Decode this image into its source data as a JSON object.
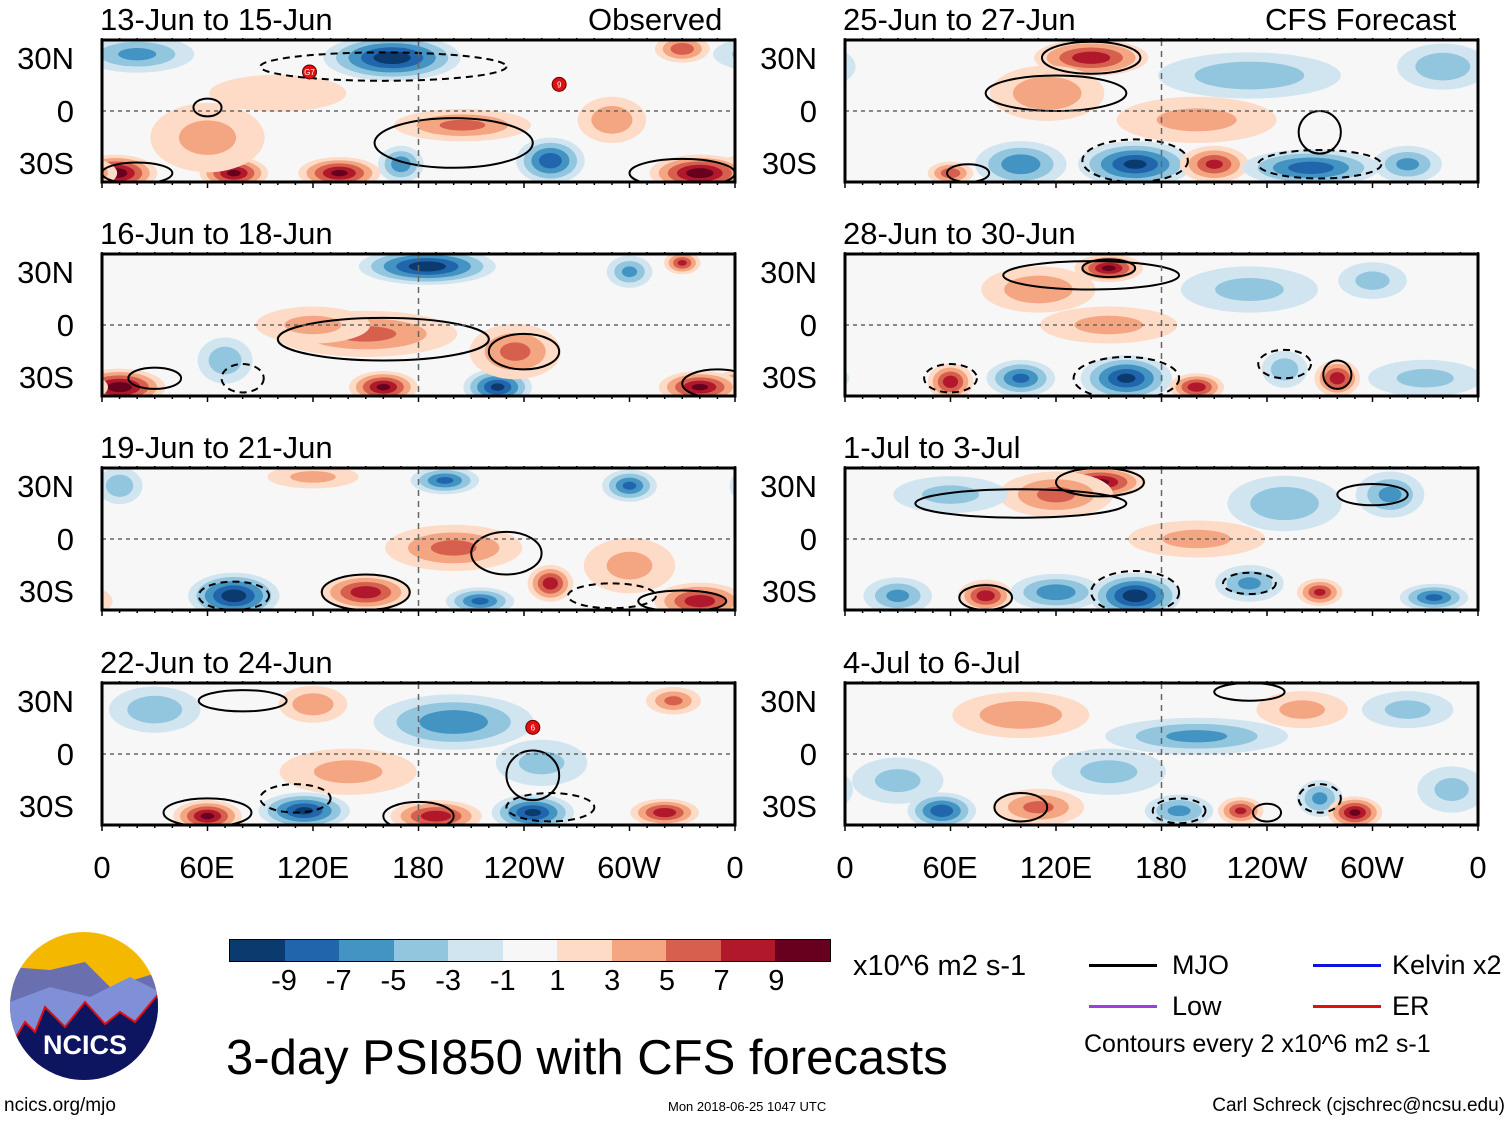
{
  "colors": [
    "#0a3a6e",
    "#2166ac",
    "#4393c3",
    "#92c5de",
    "#d1e5f0",
    "#f7f7f7",
    "#fddbc7",
    "#f4a582",
    "#d6604d",
    "#b2182b",
    "#67001f"
  ],
  "colorbar_labels": [
    "-9",
    "-7",
    "-5",
    "-3",
    "-1",
    "1",
    "3",
    "5",
    "7",
    "9"
  ],
  "units": "x10^6 m2 s-1",
  "lat_labels": [
    "30N",
    "0",
    "30S"
  ],
  "lon_labels": [
    "0",
    "60E",
    "120E",
    "180",
    "120W",
    "60W",
    "0"
  ],
  "headers": {
    "left": "Observed",
    "right": "CFS Forecast"
  },
  "title": "3-day PSI850 with CFS forecasts",
  "legend": [
    {
      "label": "MJO",
      "color": "#000000"
    },
    {
      "label": "Kelvin x2",
      "color": "#1010e0"
    },
    {
      "label": "Low",
      "color": "#9b40e0"
    },
    {
      "label": "ER",
      "color": "#e01010"
    }
  ],
  "contour_note": "Contours every 2 x10^6 m2 s-1",
  "footer": {
    "left": "ncics.org/mjo",
    "center": "Mon 2018-06-25 1047 UTC",
    "right": "Carl Schreck (cjschrec@ncsu.edu)"
  },
  "logo_text": "NCICS",
  "panels": [
    {
      "title": "13-Jun to 15-Jun",
      "features": [
        [
          165,
          30,
          -10,
          30,
          10
        ],
        [
          20,
          32,
          -5,
          25,
          8
        ],
        [
          8,
          -35,
          10,
          18,
          8
        ],
        [
          75,
          -35,
          9,
          15,
          7
        ],
        [
          135,
          -35,
          9,
          18,
          7
        ],
        [
          170,
          -30,
          -6,
          10,
          8
        ],
        [
          255,
          -28,
          -8,
          15,
          10
        ],
        [
          340,
          -35,
          10,
          22,
          8
        ],
        [
          205,
          -8,
          5,
          30,
          7
        ],
        [
          60,
          -15,
          3,
          25,
          15
        ],
        [
          330,
          35,
          6,
          12,
          6
        ],
        [
          290,
          -5,
          4,
          15,
          10
        ],
        [
          100,
          10,
          2,
          30,
          8
        ]
      ],
      "contours": [
        [
          160,
          25,
          70,
          8,
          1
        ],
        [
          60,
          2,
          8,
          5,
          0
        ],
        [
          200,
          -18,
          45,
          14,
          0
        ],
        [
          330,
          -35,
          30,
          8,
          0
        ],
        [
          20,
          -35,
          20,
          6,
          0
        ]
      ],
      "storms": [
        [
          118,
          22,
          "G7"
        ],
        [
          260,
          15,
          "9"
        ]
      ]
    },
    {
      "title": "16-Jun to 18-Jun",
      "features": [
        [
          185,
          33,
          -10,
          30,
          8
        ],
        [
          300,
          30,
          -5,
          10,
          7
        ],
        [
          330,
          35,
          7,
          8,
          5
        ],
        [
          10,
          -35,
          10,
          20,
          8
        ],
        [
          160,
          -35,
          9,
          15,
          7
        ],
        [
          225,
          -35,
          -9,
          15,
          8
        ],
        [
          340,
          -35,
          9,
          18,
          7
        ],
        [
          150,
          -5,
          5,
          40,
          10
        ],
        [
          70,
          -20,
          -4,
          12,
          10
        ],
        [
          235,
          -15,
          5,
          20,
          12
        ],
        [
          120,
          0,
          3,
          25,
          8
        ]
      ],
      "contours": [
        [
          160,
          -8,
          60,
          12,
          0
        ],
        [
          240,
          -15,
          20,
          10,
          0
        ],
        [
          350,
          -33,
          20,
          8,
          0
        ],
        [
          30,
          -30,
          15,
          6,
          0
        ],
        [
          80,
          -30,
          12,
          8,
          1
        ]
      ],
      "storms": []
    },
    {
      "title": "19-Jun to 21-Jun",
      "features": [
        [
          195,
          33,
          -7,
          15,
          6
        ],
        [
          300,
          30,
          -7,
          12,
          7
        ],
        [
          10,
          30,
          -4,
          10,
          8
        ],
        [
          75,
          -32,
          -10,
          20,
          10
        ],
        [
          150,
          -30,
          8,
          20,
          8
        ],
        [
          215,
          -35,
          -7,
          15,
          6
        ],
        [
          255,
          -25,
          8,
          10,
          8
        ],
        [
          340,
          -35,
          8,
          20,
          8
        ],
        [
          200,
          -5,
          5,
          30,
          10
        ],
        [
          300,
          -15,
          3,
          20,
          12
        ],
        [
          120,
          35,
          3,
          20,
          5
        ]
      ],
      "contours": [
        [
          230,
          -8,
          20,
          12,
          0
        ],
        [
          150,
          -30,
          25,
          10,
          0
        ],
        [
          75,
          -32,
          20,
          8,
          1
        ],
        [
          290,
          -32,
          25,
          7,
          1
        ],
        [
          330,
          -35,
          25,
          6,
          0
        ]
      ],
      "storms": []
    },
    {
      "title": "22-Jun to 24-Jun",
      "features": [
        [
          200,
          18,
          -6,
          35,
          12
        ],
        [
          120,
          28,
          4,
          15,
          8
        ],
        [
          325,
          30,
          5,
          12,
          6
        ],
        [
          30,
          25,
          -4,
          20,
          10
        ],
        [
          60,
          -35,
          9,
          15,
          7
        ],
        [
          115,
          -32,
          -9,
          20,
          8
        ],
        [
          190,
          -35,
          8,
          20,
          7
        ],
        [
          245,
          -33,
          -9,
          18,
          8
        ],
        [
          320,
          -33,
          8,
          15,
          6
        ],
        [
          140,
          -10,
          3,
          30,
          10
        ],
        [
          250,
          -5,
          -3,
          20,
          10
        ]
      ],
      "contours": [
        [
          245,
          -12,
          15,
          14,
          0
        ],
        [
          60,
          -33,
          25,
          8,
          0
        ],
        [
          180,
          -35,
          20,
          8,
          0
        ],
        [
          110,
          -25,
          20,
          8,
          1
        ],
        [
          255,
          -30,
          25,
          8,
          1
        ],
        [
          80,
          30,
          25,
          6,
          0
        ]
      ],
      "storms": [
        [
          245,
          15,
          "6"
        ]
      ]
    },
    {
      "title": "25-Jun to 27-Jun",
      "features": [
        [
          140,
          30,
          8,
          25,
          8
        ],
        [
          115,
          10,
          4,
          25,
          12
        ],
        [
          230,
          20,
          -4,
          40,
          10
        ],
        [
          340,
          25,
          -4,
          20,
          10
        ],
        [
          100,
          -30,
          -6,
          20,
          10
        ],
        [
          165,
          -30,
          -9,
          25,
          10
        ],
        [
          210,
          -30,
          7,
          15,
          8
        ],
        [
          265,
          -32,
          -8,
          30,
          8
        ],
        [
          320,
          -30,
          -5,
          15,
          8
        ],
        [
          60,
          -35,
          6,
          10,
          5
        ],
        [
          200,
          -5,
          3,
          35,
          10
        ]
      ],
      "contours": [
        [
          140,
          30,
          28,
          9,
          0
        ],
        [
          120,
          10,
          40,
          10,
          0
        ],
        [
          165,
          -28,
          30,
          12,
          1
        ],
        [
          270,
          -30,
          35,
          8,
          1
        ],
        [
          270,
          -12,
          12,
          12,
          0
        ],
        [
          70,
          -35,
          12,
          5,
          0
        ]
      ],
      "storms": []
    },
    {
      "title": "28-Jun to 30-Jun",
      "features": [
        [
          150,
          32,
          9,
          15,
          6
        ],
        [
          110,
          20,
          4,
          25,
          10
        ],
        [
          230,
          20,
          -3,
          30,
          10
        ],
        [
          300,
          25,
          -3,
          15,
          8
        ],
        [
          60,
          -32,
          8,
          10,
          8
        ],
        [
          100,
          -30,
          -7,
          15,
          8
        ],
        [
          160,
          -30,
          -9,
          20,
          10
        ],
        [
          200,
          -35,
          8,
          12,
          6
        ],
        [
          250,
          -25,
          -4,
          10,
          8
        ],
        [
          280,
          -30,
          8,
          10,
          8
        ],
        [
          330,
          -30,
          -3,
          25,
          8
        ],
        [
          150,
          0,
          3,
          30,
          8
        ]
      ],
      "contours": [
        [
          140,
          28,
          50,
          8,
          0
        ],
        [
          150,
          32,
          15,
          5,
          0
        ],
        [
          160,
          -30,
          30,
          12,
          1
        ],
        [
          60,
          -30,
          15,
          8,
          1
        ],
        [
          250,
          -22,
          15,
          8,
          1
        ],
        [
          280,
          -28,
          8,
          8,
          0
        ]
      ],
      "storms": []
    },
    {
      "title": "1-Jul to 3-Jul",
      "features": [
        [
          145,
          32,
          9,
          20,
          7
        ],
        [
          120,
          25,
          5,
          25,
          10
        ],
        [
          60,
          25,
          -3,
          25,
          8
        ],
        [
          250,
          20,
          -4,
          25,
          12
        ],
        [
          310,
          25,
          -5,
          15,
          10
        ],
        [
          30,
          -32,
          -5,
          15,
          8
        ],
        [
          80,
          -32,
          8,
          12,
          7
        ],
        [
          120,
          -30,
          -6,
          20,
          8
        ],
        [
          165,
          -32,
          -10,
          20,
          10
        ],
        [
          230,
          -25,
          -5,
          15,
          8
        ],
        [
          270,
          -30,
          7,
          10,
          6
        ],
        [
          335,
          -33,
          -7,
          15,
          6
        ],
        [
          200,
          0,
          3,
          30,
          8
        ]
      ],
      "contours": [
        [
          145,
          32,
          25,
          8,
          0
        ],
        [
          100,
          20,
          60,
          8,
          0
        ],
        [
          165,
          -30,
          25,
          12,
          1
        ],
        [
          80,
          -33,
          15,
          7,
          0
        ],
        [
          230,
          -25,
          15,
          6,
          1
        ],
        [
          300,
          25,
          20,
          6,
          0
        ]
      ],
      "storms": []
    },
    {
      "title": "4-Jul to 6-Jul",
      "features": [
        [
          200,
          10,
          -5,
          40,
          8
        ],
        [
          100,
          22,
          4,
          30,
          10
        ],
        [
          260,
          25,
          3,
          20,
          8
        ],
        [
          320,
          25,
          -3,
          20,
          8
        ],
        [
          55,
          -32,
          -8,
          15,
          8
        ],
        [
          110,
          -30,
          5,
          20,
          8
        ],
        [
          190,
          -32,
          -5,
          15,
          7
        ],
        [
          225,
          -32,
          7,
          10,
          6
        ],
        [
          270,
          -25,
          -5,
          10,
          8
        ],
        [
          290,
          -33,
          9,
          12,
          7
        ],
        [
          30,
          -15,
          -3,
          20,
          10
        ],
        [
          150,
          -10,
          -3,
          25,
          10
        ],
        [
          345,
          -20,
          -3,
          15,
          10
        ]
      ],
      "contours": [
        [
          100,
          -30,
          15,
          8,
          0
        ],
        [
          190,
          -32,
          15,
          7,
          1
        ],
        [
          270,
          -25,
          12,
          8,
          1
        ],
        [
          230,
          35,
          20,
          5,
          0
        ],
        [
          240,
          -33,
          8,
          5,
          0
        ]
      ],
      "storms": []
    }
  ]
}
